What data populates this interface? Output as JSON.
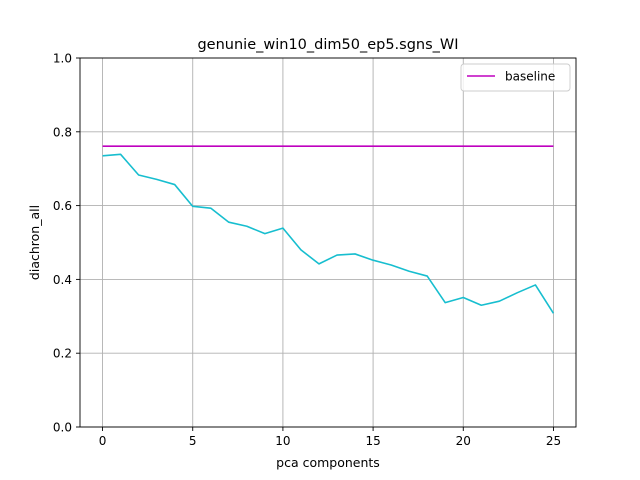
{
  "chart_data": {
    "type": "line",
    "title": "genunie_win10_dim50_ep5.sgns_WI",
    "xlabel": "pca components",
    "ylabel": "diachron_all",
    "xlim": [
      -1.25,
      26.25
    ],
    "ylim": [
      0.0,
      1.0
    ],
    "xticks": [
      0,
      5,
      10,
      15,
      20,
      25
    ],
    "yticks": [
      0.0,
      0.2,
      0.4,
      0.6,
      0.8,
      1.0
    ],
    "xtick_labels": [
      "0",
      "5",
      "10",
      "15",
      "20",
      "25"
    ],
    "ytick_labels": [
      "0.0",
      "0.2",
      "0.4",
      "0.6",
      "0.8",
      "1.0"
    ],
    "grid": true,
    "legend_position": "top-right",
    "series": [
      {
        "name": "",
        "color": "#17becf",
        "x": [
          0,
          1,
          2,
          3,
          4,
          5,
          6,
          7,
          8,
          9,
          10,
          11,
          12,
          13,
          14,
          15,
          16,
          17,
          18,
          19,
          20,
          21,
          22,
          23,
          24,
          25
        ],
        "values": [
          0.735,
          0.739,
          0.683,
          0.671,
          0.657,
          0.598,
          0.593,
          0.555,
          0.544,
          0.524,
          0.539,
          0.48,
          0.442,
          0.466,
          0.469,
          0.452,
          0.439,
          0.422,
          0.409,
          0.337,
          0.351,
          0.33,
          0.341,
          0.364,
          0.385,
          0.308
        ]
      },
      {
        "name": "baseline",
        "color": "#bf00bf",
        "x": [
          0,
          25
        ],
        "values": [
          0.761,
          0.761
        ]
      }
    ]
  }
}
